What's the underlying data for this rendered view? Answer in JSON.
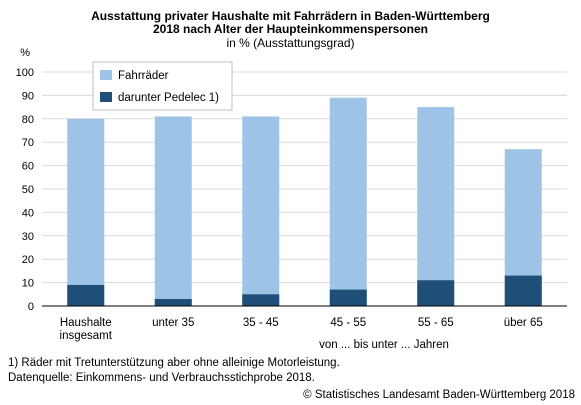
{
  "title_line1": "Ausstattung privater Haushalte mit Fahrrädern in Baden-Württemberg",
  "title_line2": "2018 nach Alter der Haupteinkommenspersonen",
  "subtitle": "in % (Ausstattungsgrad)",
  "footnote1": "1) Räder mit Tretunterstützung aber ohne alleinige Motorleistung.",
  "footnote2": "Datenquelle: Einkommens- und Verbrauchsstichprobe 2018.",
  "copyright": "© Statistisches Landesamt Baden-Württemberg 2018",
  "colors": {
    "fahrraeder": "#9dc3e6",
    "pedelec": "#1f4e79",
    "grid": "#d9d9d9",
    "axis": "#000000"
  },
  "chart_data": {
    "type": "bar",
    "ylabel": "%",
    "xlabel": "von ... bis unter ... Jahren",
    "ylim": [
      0,
      100
    ],
    "yticks": [
      0,
      10,
      20,
      30,
      40,
      50,
      60,
      70,
      80,
      90,
      100
    ],
    "grid": true,
    "legend_position": "top-left",
    "categories": [
      [
        "Haushalte",
        "insgesamt"
      ],
      [
        "unter 35"
      ],
      [
        "35 - 45"
      ],
      [
        "45 - 55"
      ],
      [
        "55 - 65"
      ],
      [
        "über 65"
      ]
    ],
    "series": [
      {
        "name": "Fahrräder",
        "values": [
          80,
          81,
          81,
          89,
          85,
          67
        ]
      },
      {
        "name": "darunter Pedelec 1)",
        "values": [
          9,
          3,
          5,
          7,
          11,
          13
        ]
      }
    ]
  }
}
